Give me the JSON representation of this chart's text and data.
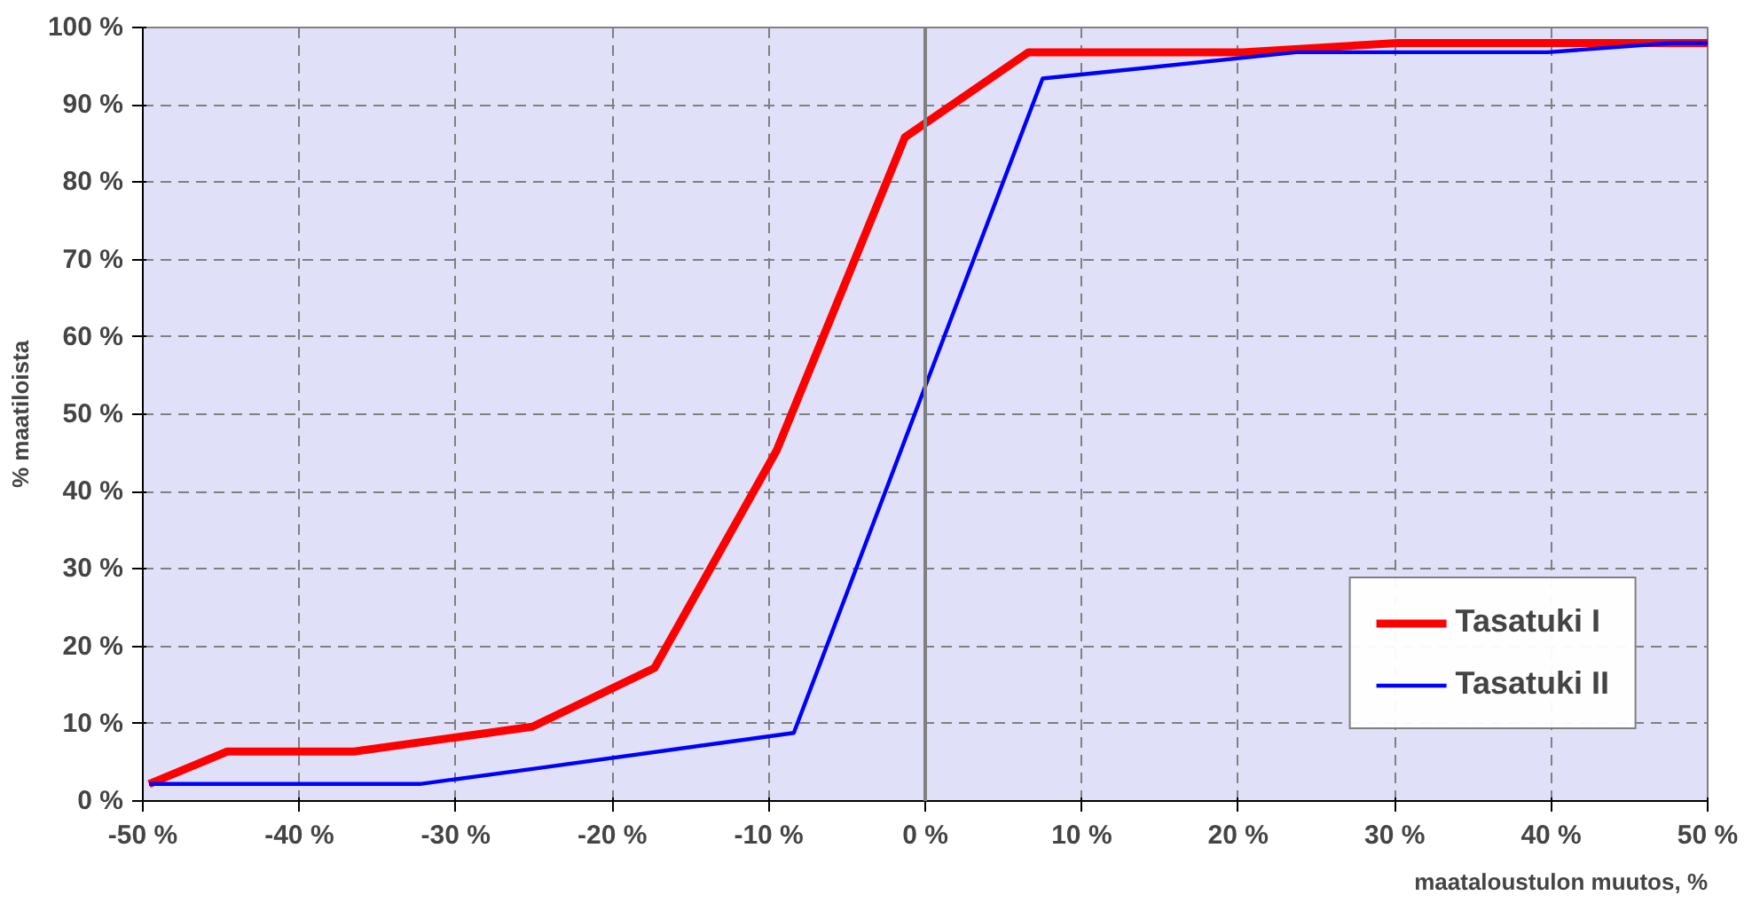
{
  "chart_data": {
    "type": "line",
    "xlabel": "maataloustulon muutos, %",
    "ylabel": "% maatiloista",
    "xlim": [
      -50,
      50
    ],
    "ylim": [
      0,
      100
    ],
    "xticks": [
      {
        "value": -50,
        "label": "-50 %"
      },
      {
        "value": -40,
        "label": "-40 %"
      },
      {
        "value": -30,
        "label": "-30 %"
      },
      {
        "value": -20,
        "label": "-20 %"
      },
      {
        "value": -10,
        "label": "-10 %"
      },
      {
        "value": 0,
        "label": "0 %"
      },
      {
        "value": 10,
        "label": "10 %"
      },
      {
        "value": 20,
        "label": "20 %"
      },
      {
        "value": 30,
        "label": "30 %"
      },
      {
        "value": 40,
        "label": "40 %"
      },
      {
        "value": 50,
        "label": "50 %"
      }
    ],
    "yticks": [
      {
        "value": 0,
        "label": "0 %"
      },
      {
        "value": 10,
        "label": "10 %"
      },
      {
        "value": 20,
        "label": "20 %"
      },
      {
        "value": 30,
        "label": "30 %"
      },
      {
        "value": 40,
        "label": "40 %"
      },
      {
        "value": 50,
        "label": "50 %"
      },
      {
        "value": 60,
        "label": "60 %"
      },
      {
        "value": 70,
        "label": "70 %"
      },
      {
        "value": 80,
        "label": "80 %"
      },
      {
        "value": 90,
        "label": "90 %"
      },
      {
        "value": 100,
        "label": "100 %"
      }
    ],
    "grid": true,
    "legend": "bottom right",
    "marker": "none",
    "line_style": "solid",
    "ref_lines": [
      {
        "axis": "x",
        "value": 0,
        "color": "#808080"
      }
    ],
    "series": [
      {
        "name": "Tasatuki I",
        "color": "#ff0000",
        "x": [
          -49.6,
          -44.6,
          -36.5,
          -25.1,
          -17.3,
          -9.5,
          -1.3,
          6.6,
          20.3,
          30.2,
          50
        ],
        "values": [
          2.2,
          6.4,
          6.4,
          9.6,
          17.2,
          45.3,
          85.8,
          96.8,
          96.8,
          98,
          98
        ]
      },
      {
        "name": "Tasatuki II",
        "color": "#0000ff",
        "x": [
          -49.6,
          -32.3,
          -24.9,
          -8.4,
          -0.3,
          7.5,
          23.7,
          39.8,
          47.6,
          50
        ],
        "values": [
          2.2,
          2.2,
          4.2,
          8.8,
          52,
          93.4,
          96.8,
          96.8,
          98,
          98
        ]
      }
    ]
  }
}
